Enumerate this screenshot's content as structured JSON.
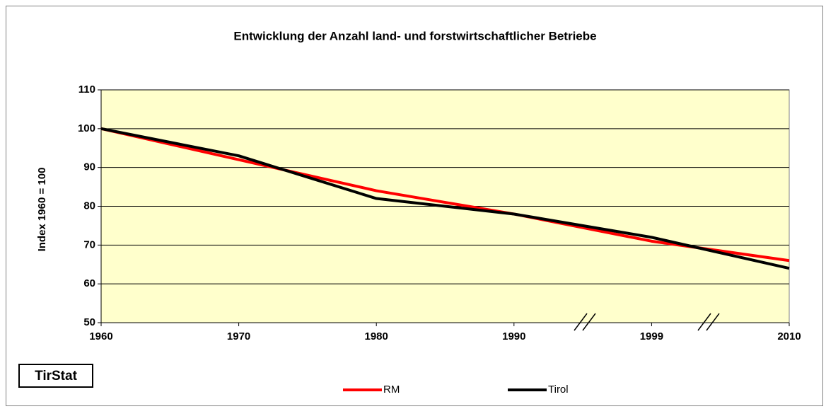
{
  "chart_data": {
    "type": "line",
    "title": "Entwicklung der Anzahl land- und forstwirtschaftlicher Betriebe",
    "y_label": "Index 1960 = 100",
    "annotations": [
      "TirStat"
    ],
    "categories": [
      "1960",
      "1970",
      "1980",
      "1990",
      "1999",
      "2010"
    ],
    "series": [
      {
        "name": "RM",
        "color": "#ff0000",
        "values": [
          100,
          92,
          84,
          78,
          71,
          66
        ]
      },
      {
        "name": "Tirol",
        "color": "#000000",
        "values": [
          100,
          93,
          82,
          78,
          72,
          64
        ]
      }
    ],
    "ylim": [
      50,
      110
    ],
    "yticks": [
      50,
      60,
      70,
      80,
      90,
      100,
      110
    ],
    "grid": true,
    "legend": "bottom"
  }
}
